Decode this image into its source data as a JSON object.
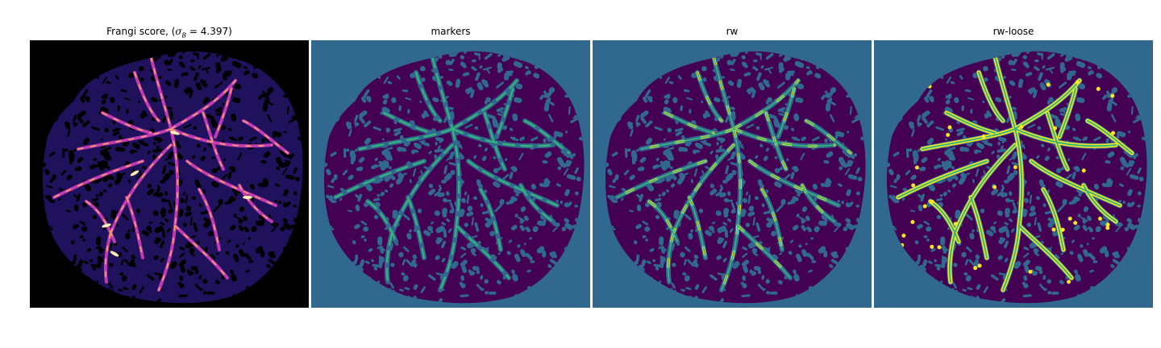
{
  "figure": {
    "panels": [
      {
        "id": "frangi",
        "title_prefix": "Frangi score, (",
        "title_sigma": "σ",
        "title_sub": "B",
        "title_eq": " = 4.397)",
        "colormap": "magma",
        "background": "#000000"
      },
      {
        "id": "markers",
        "title": "markers",
        "background": "#31688e",
        "tissue": "#440154",
        "marker": "#35b779"
      },
      {
        "id": "rw",
        "title": "rw",
        "background": "#31688e",
        "tissue": "#440154",
        "vessel": "#35b779",
        "highlight": "#fde725"
      },
      {
        "id": "rw-loose",
        "title": "rw-loose",
        "background": "#31688e",
        "tissue": "#440154",
        "vessel": "#35b779",
        "highlight": "#fde725"
      }
    ]
  },
  "colors": {
    "viridis_bg": "#31688e",
    "viridis_dark": "#440154",
    "viridis_green": "#35b779",
    "viridis_yellow": "#fde725",
    "magma_dark": "#000000",
    "magma_purple": "#3a1fa8",
    "magma_magenta": "#c03ab0",
    "magma_orange": "#f7a26b",
    "magma_light": "#fcefb4"
  }
}
